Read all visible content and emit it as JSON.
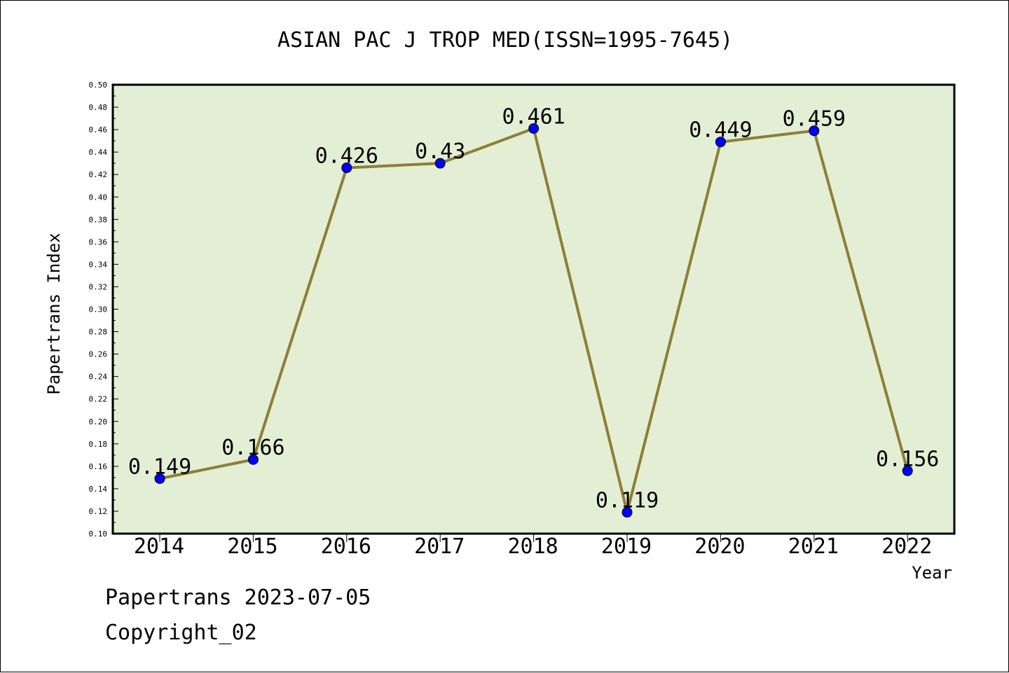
{
  "footer": {
    "source": "Papertrans 2023-07-05",
    "copyright": "Copyright_02"
  },
  "chart_data": {
    "type": "line",
    "title": "ASIAN PAC J TROP MED(ISSN=1995-7645)",
    "xlabel": "Year",
    "ylabel": "Papertrans Index",
    "categories": [
      "2014",
      "2015",
      "2016",
      "2017",
      "2018",
      "2019",
      "2020",
      "2021",
      "2022"
    ],
    "values": [
      0.149,
      0.166,
      0.426,
      0.43,
      0.461,
      0.119,
      0.449,
      0.459,
      0.156
    ],
    "data_labels": [
      "0.149",
      "0.166",
      "0.426",
      "0.43",
      "0.461",
      "0.119",
      "0.449",
      "0.459",
      "0.156"
    ],
    "ylim": [
      0.1,
      0.5
    ],
    "yticks": [
      "0.10",
      "0.12",
      "0.14",
      "0.16",
      "0.18",
      "0.20",
      "0.22",
      "0.24",
      "0.26",
      "0.28",
      "0.30",
      "0.32",
      "0.34",
      "0.36",
      "0.38",
      "0.40",
      "0.42",
      "0.44",
      "0.46",
      "0.48",
      "0.50"
    ],
    "grid": false,
    "colors": {
      "plot_background": "#e2efd5",
      "line": "#8e7e36",
      "marker": "#0000ff"
    }
  }
}
